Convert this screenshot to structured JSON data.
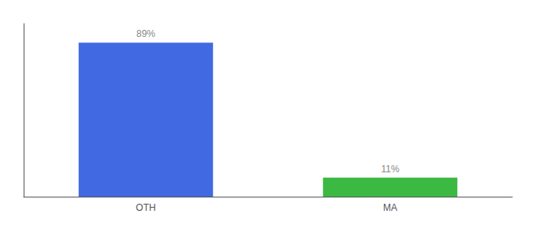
{
  "chart_data": {
    "type": "bar",
    "categories": [
      "OTH",
      "MA"
    ],
    "values": [
      89,
      11
    ],
    "colors": [
      "#4169e1",
      "#3cb943"
    ],
    "value_labels": [
      "89%",
      "11%"
    ],
    "data_labels": true,
    "ylim": [
      0,
      100
    ],
    "yticks": [],
    "tick_labels": "x",
    "grid": false
  }
}
